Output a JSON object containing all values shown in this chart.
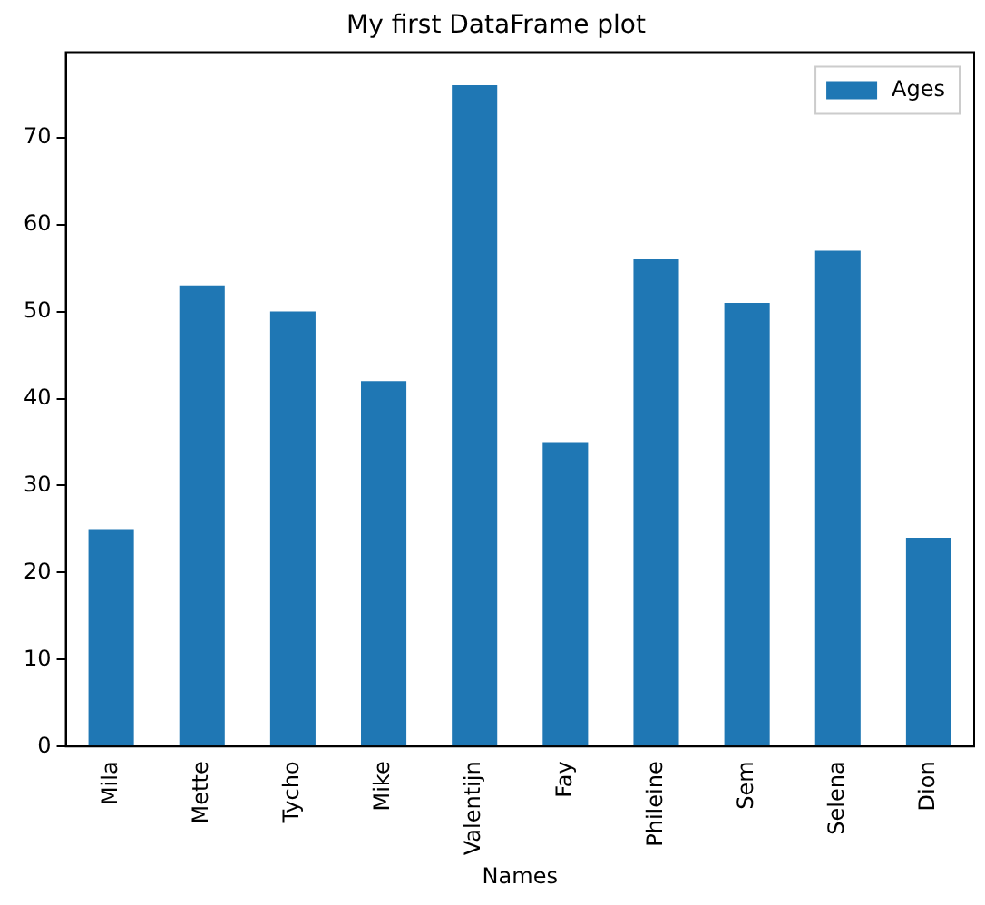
{
  "chart_data": {
    "type": "bar",
    "title": "My first DataFrame plot",
    "xlabel": "Names",
    "categories": [
      "Mila",
      "Mette",
      "Tycho",
      "Mike",
      "Valentijn",
      "Fay",
      "Phileine",
      "Sem",
      "Selena",
      "Dion"
    ],
    "series": [
      {
        "name": "Ages",
        "color": "#1f77b4",
        "values": [
          25,
          53,
          50,
          42,
          76,
          35,
          56,
          51,
          57,
          24
        ]
      }
    ],
    "ylim": [
      0,
      79.8
    ],
    "yticks": [
      0,
      10,
      20,
      30,
      40,
      50,
      60,
      70
    ],
    "grid": false,
    "legend": "top right"
  }
}
